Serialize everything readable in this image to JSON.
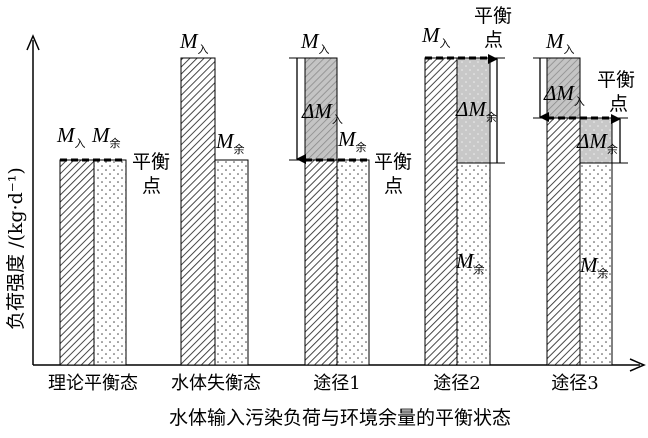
{
  "y_axis_label": "负荷强度 /(kg·d⁻¹)",
  "x_axis_label": "水体输入污染负荷与环境余量的平衡状态",
  "categories": [
    "理论平衡态",
    "水体失衡态",
    "途径1",
    "途径2",
    "途径3"
  ],
  "symbols": {
    "M": "M",
    "delta": "Δ",
    "in": "入",
    "rem": "余"
  },
  "balance_point": {
    "line1": "平衡",
    "line2": "点"
  },
  "legend_patterns": {
    "input_load": "hatched",
    "remaining_capacity": "dotted",
    "change": "gray"
  }
}
